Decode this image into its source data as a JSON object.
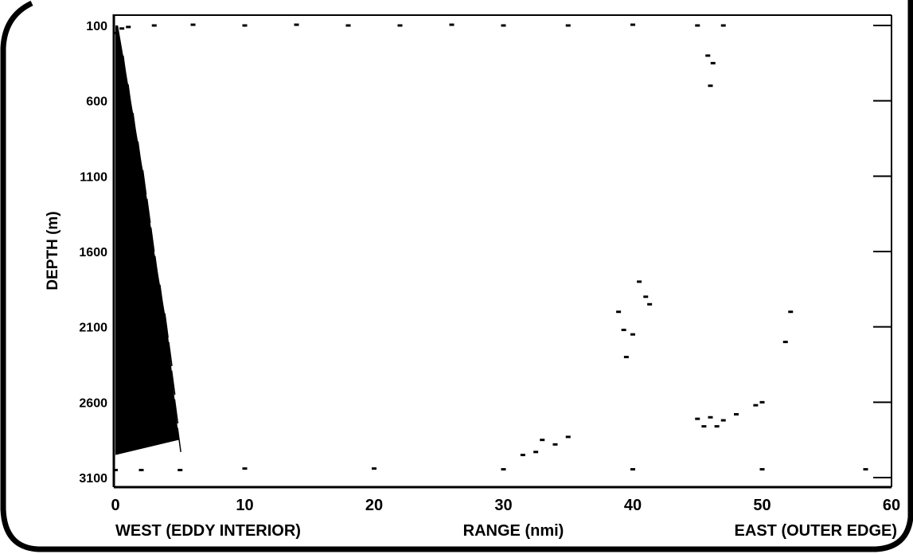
{
  "chart_data": {
    "type": "scatter",
    "title": "",
    "xlabel": "RANGE (nmi)",
    "xlabel_left": "WEST (EDDY INTERIOR)",
    "xlabel_right": "EAST (OUTER EDGE)",
    "ylabel": "DEPTH (m)",
    "xlim": [
      0,
      60
    ],
    "ylim": [
      3100,
      100
    ],
    "y_inverted": true,
    "grid": false,
    "x_ticks": [
      "0",
      "10",
      "20",
      "30",
      "40",
      "50",
      "60"
    ],
    "y_ticks": [
      "100",
      "600",
      "1100",
      "1600",
      "2100",
      "2600",
      "3100"
    ],
    "colors": {
      "ink": "#000000",
      "background": "#ffffff"
    },
    "series": [
      {
        "values_desc": "",
        "points": [
          [
            0.0,
            150
          ],
          [
            0.5,
            120
          ],
          [
            1.0,
            110
          ],
          [
            3.0,
            100
          ],
          [
            6.0,
            95
          ],
          [
            10.0,
            100
          ],
          [
            14.0,
            95
          ],
          [
            18.0,
            100
          ],
          [
            22.0,
            100
          ],
          [
            26.0,
            95
          ],
          [
            30.0,
            100
          ],
          [
            35.0,
            100
          ],
          [
            40.0,
            95
          ],
          [
            45.0,
            100
          ],
          [
            47.0,
            100
          ],
          [
            45.8,
            300
          ],
          [
            46.0,
            500
          ],
          [
            46.2,
            350
          ],
          [
            38.9,
            2000
          ],
          [
            39.3,
            2120
          ],
          [
            40.0,
            2150
          ],
          [
            39.5,
            2300
          ],
          [
            40.5,
            1800
          ],
          [
            41.3,
            1950
          ],
          [
            41.0,
            1900
          ],
          [
            52.2,
            2000
          ],
          [
            51.8,
            2200
          ],
          [
            31.5,
            2950
          ],
          [
            32.5,
            2930
          ],
          [
            33.0,
            2850
          ],
          [
            34.0,
            2880
          ],
          [
            35.0,
            2830
          ],
          [
            45.0,
            2710
          ],
          [
            46.0,
            2700
          ],
          [
            47.0,
            2720
          ],
          [
            48.0,
            2680
          ],
          [
            49.5,
            2620
          ],
          [
            50.0,
            2600
          ],
          [
            46.5,
            2760
          ],
          [
            45.5,
            2760
          ],
          [
            0.0,
            3050
          ],
          [
            2.0,
            3050
          ],
          [
            5.0,
            3050
          ],
          [
            10.0,
            3040
          ],
          [
            20.0,
            3040
          ],
          [
            30.0,
            3045
          ],
          [
            40.0,
            3045
          ],
          [
            50.0,
            3045
          ],
          [
            58.0,
            3045
          ]
        ]
      }
    ],
    "shaded_region": {
      "left_edge_x": 0,
      "right_edge_depth_x": [
        [
          100,
          0.2
        ],
        [
          600,
          1.2
        ],
        [
          1100,
          2.2
        ],
        [
          1600,
          3.0
        ],
        [
          2100,
          4.0
        ],
        [
          2600,
          4.6
        ],
        [
          2850,
          4.9
        ]
      ],
      "bottom_depth": 2950
    }
  }
}
